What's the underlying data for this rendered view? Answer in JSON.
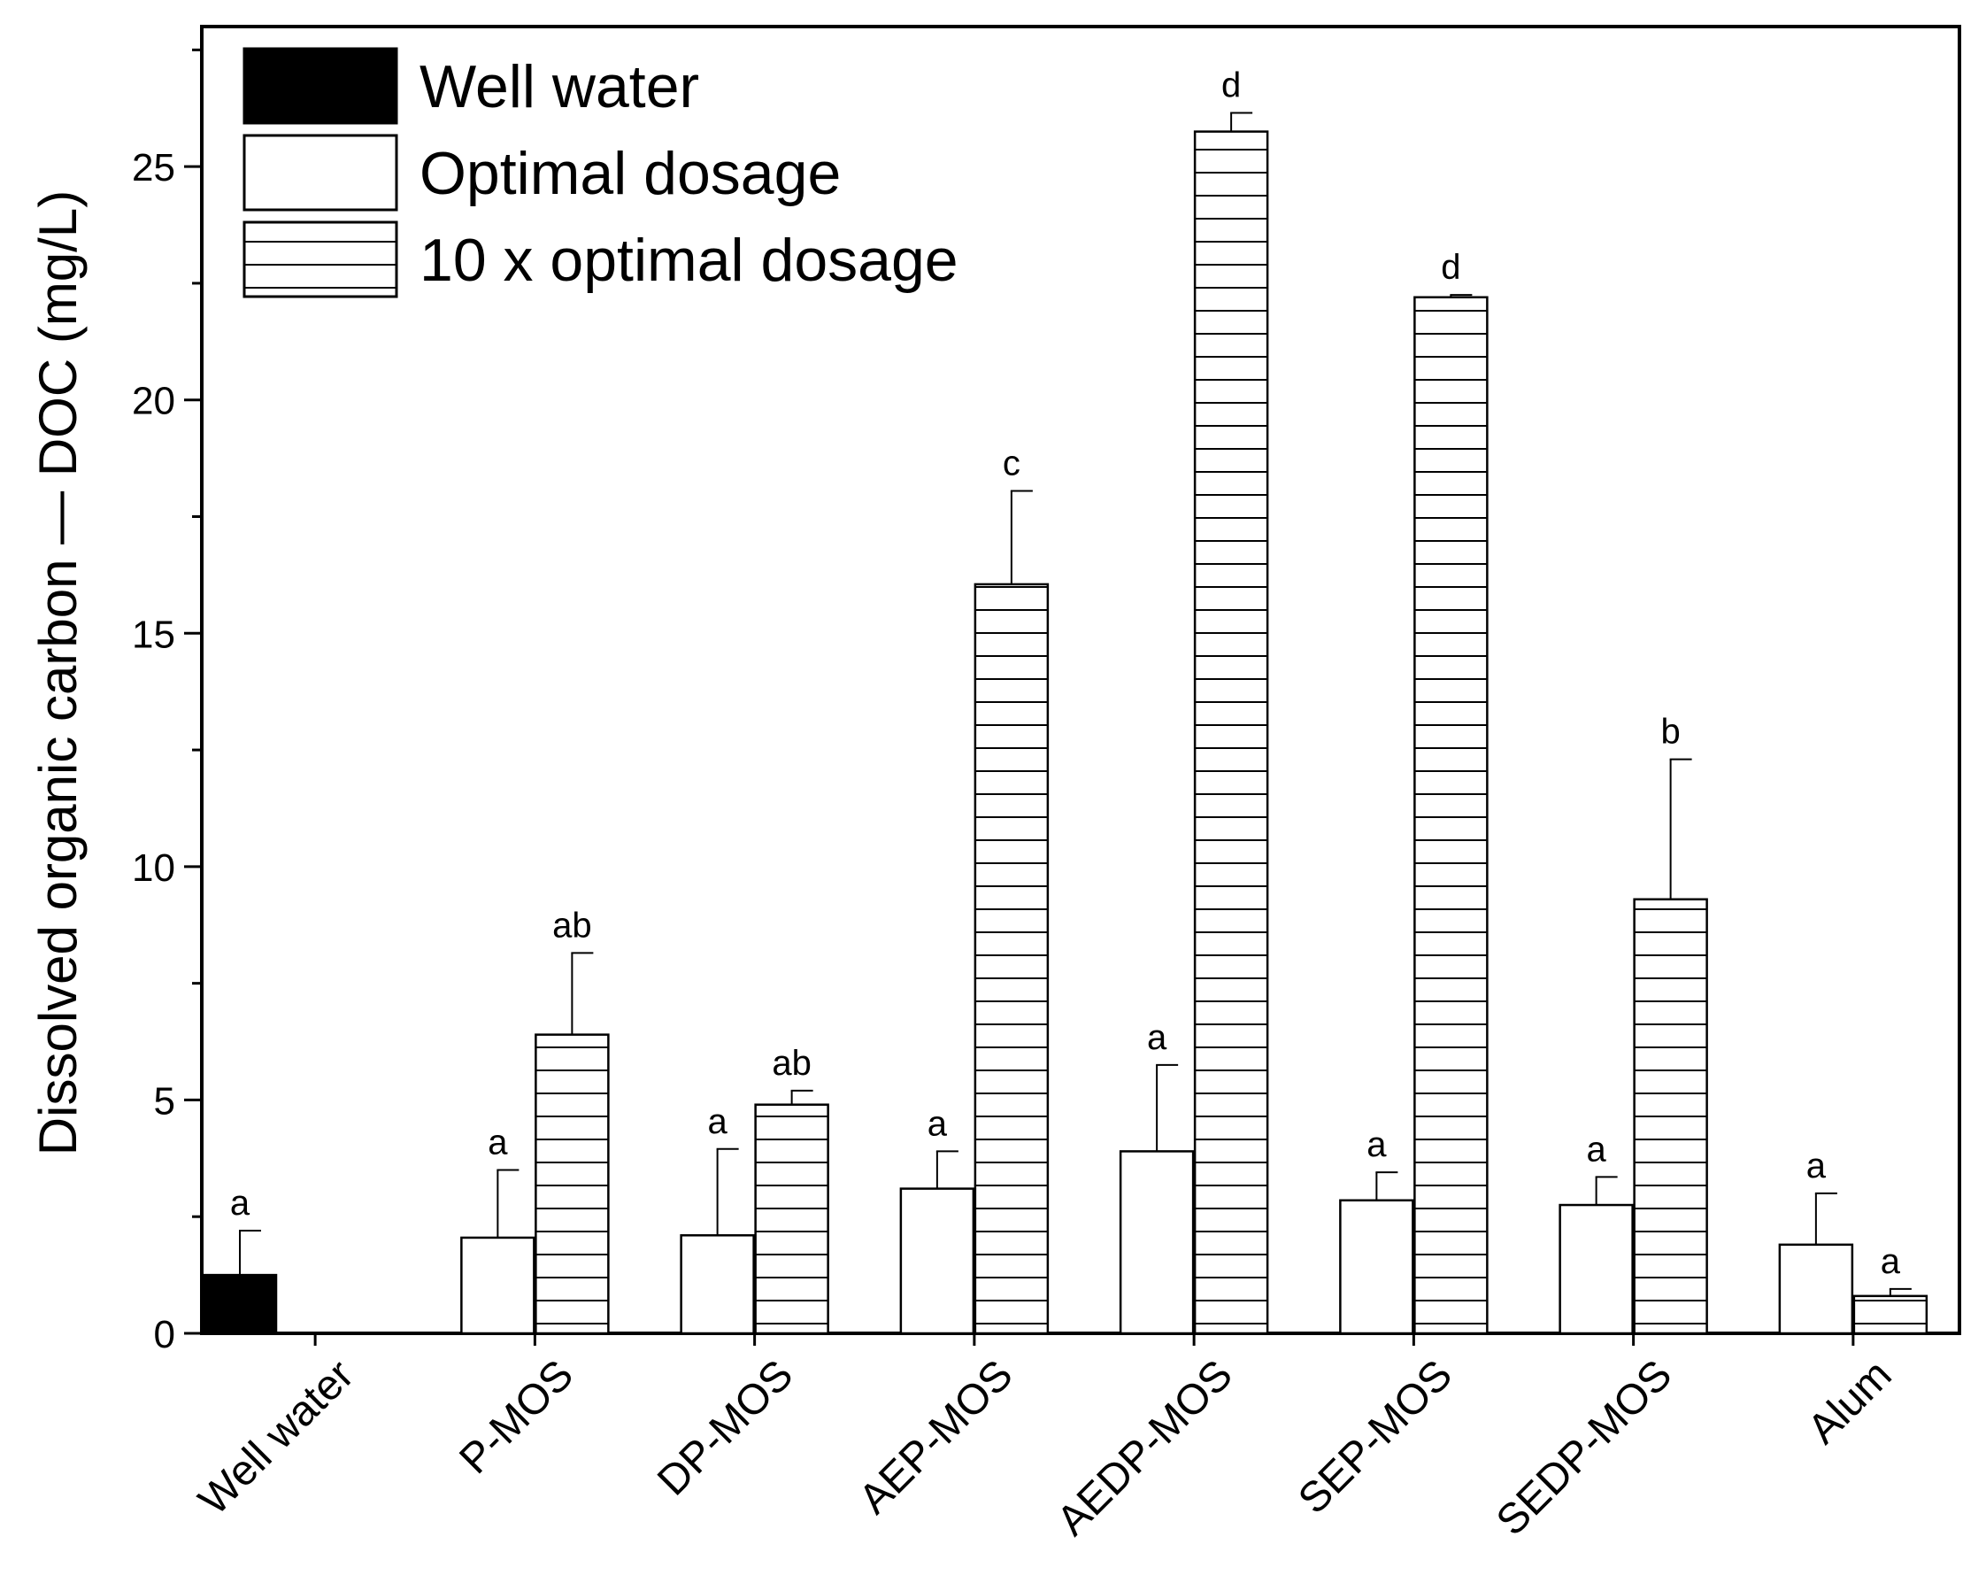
{
  "chart_data": {
    "type": "bar",
    "title": "",
    "xlabel": "",
    "ylabel": "Dissolved organic carbon — DOC (mg/L)",
    "ylim": [
      0,
      28
    ],
    "yticks": [
      0,
      5,
      10,
      15,
      20,
      25
    ],
    "categories": [
      "Well water",
      "P-MOS",
      "DP-MOS",
      "AEP-MOS",
      "AEDP-MOS",
      "SEP-MOS",
      "SEDP-MOS",
      "Alum"
    ],
    "legend_position": "top-left",
    "series": [
      {
        "name": "Well water",
        "fill": "solid-black",
        "values": [
          1.25,
          null,
          null,
          null,
          null,
          null,
          null,
          null
        ],
        "errors": [
          0.95,
          null,
          null,
          null,
          null,
          null,
          null,
          null
        ],
        "labels": [
          "a",
          "",
          "",
          "",
          "",
          "",
          "",
          ""
        ]
      },
      {
        "name": "Optimal dosage",
        "fill": "white",
        "values": [
          null,
          2.05,
          2.1,
          3.1,
          3.9,
          2.85,
          2.75,
          1.9
        ],
        "errors": [
          null,
          1.45,
          1.85,
          0.8,
          1.85,
          0.6,
          0.6,
          1.1
        ],
        "labels": [
          "",
          "a",
          "a",
          "a",
          "a",
          "a",
          "a",
          "a"
        ]
      },
      {
        "name": "10 x optimal dosage",
        "fill": "horizontal-lines",
        "values": [
          null,
          6.4,
          4.9,
          16.05,
          25.75,
          22.2,
          9.3,
          0.8
        ],
        "errors": [
          null,
          1.75,
          0.3,
          2.0,
          0.4,
          0.05,
          3.0,
          0.15
        ],
        "labels": [
          "",
          "ab",
          "ab",
          "c",
          "d",
          "d",
          "b",
          "a"
        ]
      }
    ]
  },
  "colors": {
    "ink": "#000000",
    "paper": "#ffffff"
  }
}
